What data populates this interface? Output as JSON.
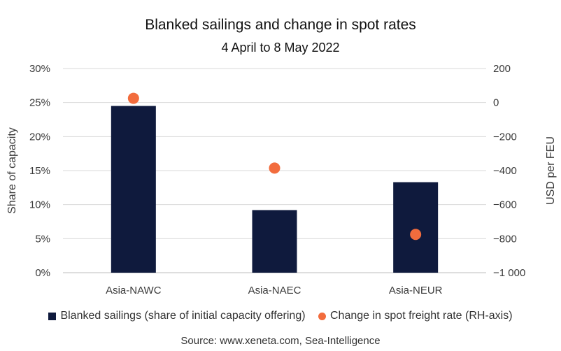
{
  "chart_data": {
    "type": "bar",
    "title": "Blanked sailings and change in spot rates",
    "subtitle": "4 April to 8 May 2022",
    "categories": [
      "Asia-NAWC",
      "Asia-NAEC",
      "Asia-NEUR"
    ],
    "series": [
      {
        "name": "Blanked sailings (share of initial capacity offering)",
        "axis": "left",
        "chart_type": "bar",
        "values": [
          24.5,
          9.2,
          13.3
        ],
        "color": "#0f1a3d"
      },
      {
        "name": "Change in spot freight rate (RH-axis)",
        "axis": "right",
        "chart_type": "scatter",
        "values": [
          25,
          -385,
          -775
        ],
        "color": "#f26c3d"
      }
    ],
    "ylabel": "Share of capacity",
    "ylim": [
      0,
      30
    ],
    "yticks": [
      "0%",
      "5%",
      "10%",
      "15%",
      "20%",
      "25%",
      "30%"
    ],
    "y2label": "USD per FEU",
    "y2lim": [
      -1000,
      200
    ],
    "y2ticks": [
      "-1 000",
      "-800",
      "-600",
      "-400",
      "-200",
      "0",
      "200"
    ],
    "grid": true,
    "legend_position": "bottom",
    "source": "Source: www.xeneta.com, Sea-Intelligence"
  }
}
